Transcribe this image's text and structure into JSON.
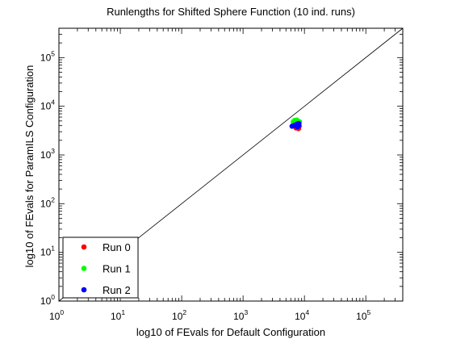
{
  "chart_data": {
    "type": "scatter",
    "title": "Runlengths for Shifted Sphere Function (10 ind. runs)",
    "xlabel": "log10 of FEvals for Default Configuration",
    "ylabel": "log10 of FEvals for ParamILS Configuration",
    "x_scale": "log",
    "y_scale": "log",
    "xlim": [
      1,
      400000
    ],
    "ylim": [
      1,
      400000
    ],
    "x_ticks": [
      {
        "base": "10",
        "exp": "0",
        "value": 1
      },
      {
        "base": "10",
        "exp": "1",
        "value": 10
      },
      {
        "base": "10",
        "exp": "2",
        "value": 100
      },
      {
        "base": "10",
        "exp": "3",
        "value": 1000
      },
      {
        "base": "10",
        "exp": "4",
        "value": 10000
      },
      {
        "base": "10",
        "exp": "5",
        "value": 100000
      }
    ],
    "y_ticks": [
      {
        "base": "10",
        "exp": "0",
        "value": 1
      },
      {
        "base": "10",
        "exp": "1",
        "value": 10
      },
      {
        "base": "10",
        "exp": "2",
        "value": 100
      },
      {
        "base": "10",
        "exp": "3",
        "value": 1000
      },
      {
        "base": "10",
        "exp": "4",
        "value": 10000
      },
      {
        "base": "10",
        "exp": "5",
        "value": 100000
      }
    ],
    "grid": false,
    "legend_position": "bottom-left",
    "diagonal_line": true,
    "series": [
      {
        "name": "Run 0",
        "color": "#ff0000",
        "points": [
          {
            "x": 7200,
            "y": 3800
          },
          {
            "x": 7600,
            "y": 4100
          },
          {
            "x": 8000,
            "y": 3500
          },
          {
            "x": 7400,
            "y": 4400
          },
          {
            "x": 8200,
            "y": 3900
          },
          {
            "x": 7000,
            "y": 4000
          },
          {
            "x": 7800,
            "y": 3700
          },
          {
            "x": 7500,
            "y": 4200
          },
          {
            "x": 8100,
            "y": 4300
          },
          {
            "x": 7300,
            "y": 3600
          }
        ]
      },
      {
        "name": "Run 1",
        "color": "#00ff00",
        "points": [
          {
            "x": 6600,
            "y": 4800
          },
          {
            "x": 7000,
            "y": 4600
          },
          {
            "x": 7600,
            "y": 5000
          },
          {
            "x": 8000,
            "y": 4700
          },
          {
            "x": 7300,
            "y": 4900
          },
          {
            "x": 6900,
            "y": 5100
          },
          {
            "x": 7800,
            "y": 4500
          },
          {
            "x": 7100,
            "y": 4400
          },
          {
            "x": 8300,
            "y": 4800
          },
          {
            "x": 7500,
            "y": 5200
          }
        ]
      },
      {
        "name": "Run 2",
        "color": "#0000ff",
        "points": [
          {
            "x": 6300,
            "y": 3900
          },
          {
            "x": 7600,
            "y": 4300
          },
          {
            "x": 7900,
            "y": 4100
          },
          {
            "x": 7200,
            "y": 4000
          },
          {
            "x": 8100,
            "y": 4400
          },
          {
            "x": 7700,
            "y": 3800
          },
          {
            "x": 7400,
            "y": 4200
          },
          {
            "x": 8000,
            "y": 4000
          },
          {
            "x": 7000,
            "y": 4100
          },
          {
            "x": 7850,
            "y": 4350
          }
        ]
      }
    ]
  }
}
